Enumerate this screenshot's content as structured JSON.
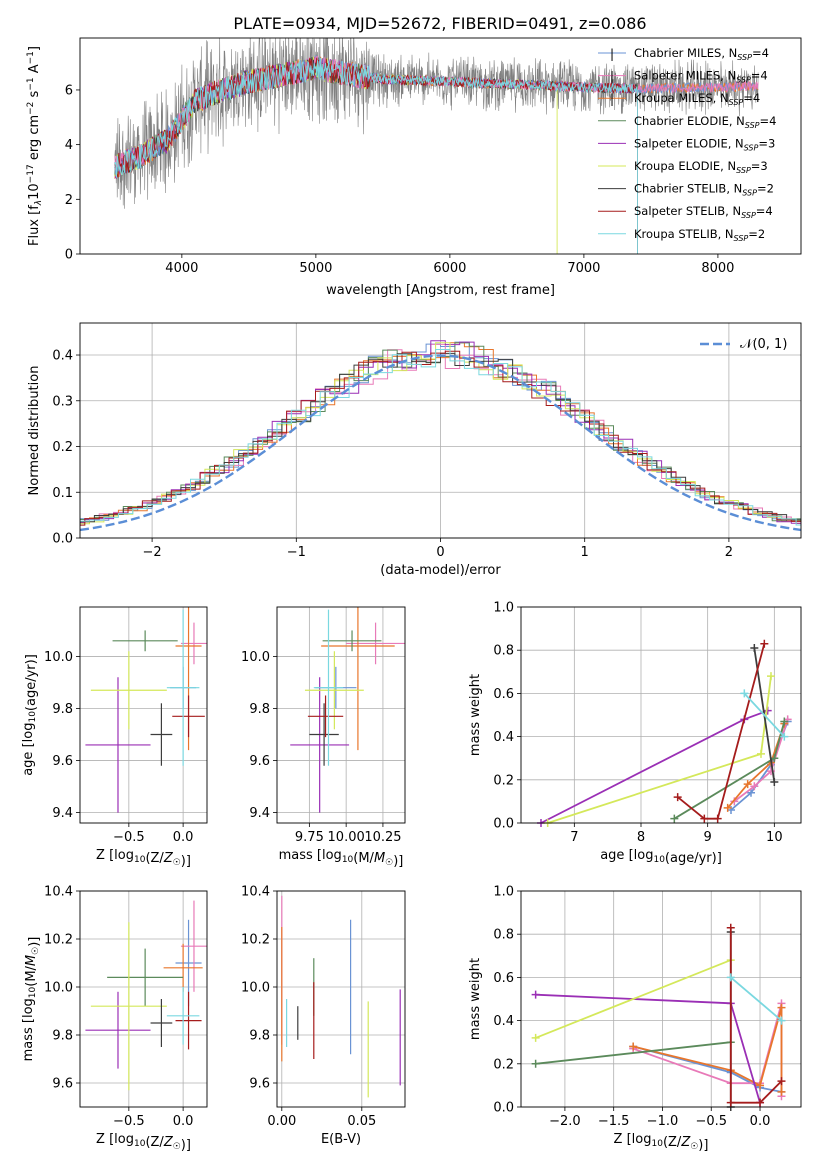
{
  "figure_title": "PLATE=0934, MJD=52672, FIBERID=0491, z=0.086",
  "colors": {
    "Chabrier MILES": "#6a93d4",
    "Salpeter MILES": "#e87ab8",
    "Kroupa MILES": "#e8762c",
    "Chabrier ELODIE": "#5b8a5b",
    "Salpeter ELODIE": "#9a2fb5",
    "Kroupa ELODIE": "#d4e85a",
    "Chabrier STELIB": "#3d3d3d",
    "Salpeter STELIB": "#a51c1c",
    "Kroupa STELIB": "#7ad8e0",
    "data": "#808080",
    "gaussian": "#5b8ed6"
  },
  "chart_data": [
    {
      "type": "line",
      "id": "spectrum",
      "title": "PLATE=0934, MJD=52672, FIBERID=0491, z=0.086",
      "xlabel": "wavelength [Angstrom, rest frame]",
      "ylabel_parts": [
        "Flux [f",
        "λ",
        "10",
        "−17",
        " erg cm",
        "−2",
        " s",
        "−1",
        " A",
        "−1",
        "]"
      ],
      "xlim": [
        3240,
        8620
      ],
      "ylim": [
        0,
        7.9
      ],
      "xticks": [
        4000,
        5000,
        6000,
        7000,
        8000
      ],
      "xtick_labels": [
        "4000",
        "5000",
        "6000",
        "7000",
        "8000"
      ],
      "yticks": [
        0,
        2,
        4,
        6
      ],
      "ytick_labels": [
        "0",
        "2",
        "4",
        "6"
      ],
      "legend_position": "right",
      "legend": [
        {
          "label": "Chabrier MILES, N",
          "sub": "SSP",
          "tail": "=4"
        },
        {
          "label": "Salpeter MILES, N",
          "sub": "SSP",
          "tail": "=4"
        },
        {
          "label": "Kroupa MILES, N",
          "sub": "SSP",
          "tail": "=4"
        },
        {
          "label": "Chabrier ELODIE, N",
          "sub": "SSP",
          "tail": "=4"
        },
        {
          "label": "Salpeter ELODIE, N",
          "sub": "SSP",
          "tail": "=3"
        },
        {
          "label": "Kroupa ELODIE, N",
          "sub": "SSP",
          "tail": "=3"
        },
        {
          "label": "Chabrier STELIB, N",
          "sub": "SSP",
          "tail": "=2"
        },
        {
          "label": "Salpeter STELIB, N",
          "sub": "SSP",
          "tail": "=4"
        },
        {
          "label": "Kroupa STELIB, N",
          "sub": "SSP",
          "tail": "=2"
        }
      ],
      "continuum": {
        "x": [
          3500,
          3700,
          3900,
          4000,
          4100,
          4300,
          4500,
          4800,
          5000,
          5200,
          5500,
          6000,
          6500,
          7000,
          7400,
          8000,
          8300
        ],
        "y": [
          3.2,
          3.6,
          4.2,
          4.9,
          5.6,
          6.0,
          6.3,
          6.6,
          6.8,
          6.6,
          6.4,
          6.3,
          6.2,
          6.1,
          6.05,
          6.1,
          6.15
        ]
      }
    },
    {
      "type": "line",
      "id": "residual-histogram",
      "xlabel": "(data-model)/error",
      "ylabel": "Normed distribution",
      "xlim": [
        -2.5,
        2.5
      ],
      "ylim": [
        0,
        0.47
      ],
      "grid": true,
      "xticks": [
        -2,
        -1,
        0,
        1,
        2
      ],
      "xtick_labels": [
        "−2",
        "−1",
        "0",
        "1",
        "2"
      ],
      "yticks": [
        0.0,
        0.1,
        0.2,
        0.3,
        0.4
      ],
      "ytick_labels": [
        "0.0",
        "0.1",
        "0.2",
        "0.3",
        "0.4"
      ],
      "legend_position": "top-right",
      "legend": [
        "𝒩(0, 1)"
      ],
      "gaussian": {
        "mean": 0,
        "sd": 1
      }
    },
    {
      "type": "scatter",
      "id": "age-vs-Z",
      "xlabel": "Z [log10(Z/Z☉)]",
      "ylabel": "age  [log10(age/yr)]",
      "xlim": [
        -0.95,
        0.22
      ],
      "ylim": [
        9.36,
        10.19
      ],
      "grid": true,
      "xticks": [
        -0.5,
        0.0
      ],
      "xtick_labels": [
        "−0.5",
        "0.0"
      ],
      "yticks": [
        9.4,
        9.6,
        9.8,
        10.0
      ],
      "ytick_labels": [
        "9.4",
        "9.6",
        "9.8",
        "10.0"
      ],
      "points": [
        {
          "model": "Chabrier MILES",
          "x": 0.0,
          "xerr": 0.12,
          "y": 9.88,
          "yerr": 0.08
        },
        {
          "model": "Salpeter MILES",
          "x": 0.1,
          "xerr": 0.12,
          "y": 10.05,
          "yerr": 0.08
        },
        {
          "model": "Kroupa MILES",
          "x": 0.05,
          "xerr": 0.12,
          "y": 10.04,
          "yerr": 0.4
        },
        {
          "model": "Chabrier ELODIE",
          "x": -0.35,
          "xerr": 0.3,
          "y": 10.06,
          "yerr": 0.04
        },
        {
          "model": "Salpeter ELODIE",
          "x": -0.6,
          "xerr": 0.3,
          "y": 9.66,
          "yerr": 0.26
        },
        {
          "model": "Kroupa ELODIE",
          "x": -0.5,
          "xerr": 0.35,
          "y": 9.87,
          "yerr": 0.15
        },
        {
          "model": "Chabrier STELIB",
          "x": -0.2,
          "xerr": 0.1,
          "y": 9.7,
          "yerr": 0.12
        },
        {
          "model": "Salpeter STELIB",
          "x": 0.05,
          "xerr": 0.15,
          "y": 9.77,
          "yerr": 0.08
        },
        {
          "model": "Kroupa STELIB",
          "x": 0.0,
          "xerr": 0.15,
          "y": 9.88,
          "yerr": 0.3
        }
      ]
    },
    {
      "type": "scatter",
      "id": "age-vs-mass",
      "xlabel": "mass [log10(M/M☉)]",
      "ylabel": "",
      "xlim": [
        9.53,
        10.4
      ],
      "ylim": [
        9.36,
        10.19
      ],
      "grid": true,
      "xticks": [
        9.75,
        10.0,
        10.25
      ],
      "xtick_labels": [
        "9.75",
        "10.00",
        "10.25"
      ],
      "yticks": [
        9.4,
        9.6,
        9.8,
        10.0
      ],
      "ytick_labels": [
        "9.4",
        "9.6",
        "9.8",
        "10.0"
      ],
      "points": [
        {
          "model": "Chabrier MILES",
          "x": 9.93,
          "xerr": 0.14,
          "y": 9.88,
          "yerr": 0.08
        },
        {
          "model": "Salpeter MILES",
          "x": 10.2,
          "xerr": 0.2,
          "y": 10.05,
          "yerr": 0.08
        },
        {
          "model": "Kroupa MILES",
          "x": 10.08,
          "xerr": 0.25,
          "y": 10.04,
          "yerr": 0.4
        },
        {
          "model": "Chabrier ELODIE",
          "x": 10.04,
          "xerr": 0.2,
          "y": 10.06,
          "yerr": 0.04
        },
        {
          "model": "Salpeter ELODIE",
          "x": 9.82,
          "xerr": 0.2,
          "y": 9.66,
          "yerr": 0.26
        },
        {
          "model": "Kroupa ELODIE",
          "x": 9.92,
          "xerr": 0.2,
          "y": 9.87,
          "yerr": 0.15
        },
        {
          "model": "Chabrier STELIB",
          "x": 9.85,
          "xerr": 0.1,
          "y": 9.7,
          "yerr": 0.12
        },
        {
          "model": "Salpeter STELIB",
          "x": 9.86,
          "xerr": 0.12,
          "y": 9.77,
          "yerr": 0.08
        },
        {
          "model": "Kroupa STELIB",
          "x": 9.88,
          "xerr": 0.1,
          "y": 9.88,
          "yerr": 0.3
        }
      ]
    },
    {
      "type": "line",
      "id": "mass-weight-vs-age",
      "xlabel": "age  [log10(age/yr)]",
      "ylabel": "mass weight",
      "xlim": [
        6.2,
        10.4
      ],
      "ylim": [
        0,
        1
      ],
      "grid": true,
      "xticks": [
        7,
        8,
        9,
        10
      ],
      "xtick_labels": [
        "7",
        "8",
        "9",
        "10"
      ],
      "yticks": [
        0.0,
        0.2,
        0.4,
        0.6,
        0.8,
        1.0
      ],
      "ytick_labels": [
        "0.0",
        "0.2",
        "0.4",
        "0.6",
        "0.8",
        "1.0"
      ],
      "series": [
        {
          "model": "Chabrier MILES",
          "x": [
            9.35,
            9.65,
            9.95,
            10.2
          ],
          "y": [
            0.06,
            0.14,
            0.27,
            0.47
          ]
        },
        {
          "model": "Salpeter MILES",
          "x": [
            9.4,
            9.7,
            9.95,
            10.2
          ],
          "y": [
            0.1,
            0.17,
            0.24,
            0.48
          ]
        },
        {
          "model": "Kroupa MILES",
          "x": [
            9.3,
            9.6,
            9.95,
            10.15
          ],
          "y": [
            0.07,
            0.18,
            0.28,
            0.46
          ]
        },
        {
          "model": "Chabrier ELODIE",
          "x": [
            8.5,
            10.0,
            10.15
          ],
          "y": [
            0.02,
            0.3,
            0.47
          ]
        },
        {
          "model": "Salpeter ELODIE",
          "x": [
            6.5,
            9.55,
            9.9
          ],
          "y": [
            0.0,
            0.48,
            0.52
          ]
        },
        {
          "model": "Kroupa ELODIE",
          "x": [
            6.6,
            9.8,
            9.95
          ],
          "y": [
            0.0,
            0.32,
            0.68
          ]
        },
        {
          "model": "Chabrier STELIB",
          "x": [
            9.7,
            10.0
          ],
          "y": [
            0.81,
            0.19
          ]
        },
        {
          "model": "Salpeter STELIB",
          "x": [
            8.55,
            8.95,
            9.15,
            9.85
          ],
          "y": [
            0.12,
            0.02,
            0.02,
            0.83
          ]
        },
        {
          "model": "Kroupa STELIB",
          "x": [
            9.55,
            10.15
          ],
          "y": [
            0.6,
            0.4
          ]
        }
      ]
    },
    {
      "type": "scatter",
      "id": "mass-vs-Z",
      "xlabel": "Z [log10(Z/Z☉)]",
      "ylabel": "mass [log10(M/M☉)]",
      "xlim": [
        -0.95,
        0.22
      ],
      "ylim": [
        9.5,
        10.4
      ],
      "grid": true,
      "xticks": [
        -0.5,
        0.0
      ],
      "xtick_labels": [
        "−0.5",
        "0.0"
      ],
      "yticks": [
        9.6,
        9.8,
        10.0,
        10.2,
        10.4
      ],
      "ytick_labels": [
        "9.6",
        "9.8",
        "10.0",
        "10.2",
        "10.4"
      ],
      "points": [
        {
          "model": "Chabrier MILES",
          "x": 0.05,
          "xerr": 0.12,
          "y": 10.1,
          "yerr": 0.18
        },
        {
          "model": "Salpeter MILES",
          "x": 0.1,
          "xerr": 0.12,
          "y": 10.17,
          "yerr": 0.19
        },
        {
          "model": "Kroupa MILES",
          "x": 0.0,
          "xerr": 0.18,
          "y": 10.08,
          "yerr": 0.1
        },
        {
          "model": "Chabrier ELODIE",
          "x": -0.35,
          "xerr": 0.35,
          "y": 10.04,
          "yerr": 0.12
        },
        {
          "model": "Salpeter ELODIE",
          "x": -0.6,
          "xerr": 0.3,
          "y": 9.82,
          "yerr": 0.16
        },
        {
          "model": "Kroupa ELODIE",
          "x": -0.5,
          "xerr": 0.35,
          "y": 9.92,
          "yerr": 0.35
        },
        {
          "model": "Chabrier STELIB",
          "x": -0.2,
          "xerr": 0.1,
          "y": 9.85,
          "yerr": 0.1
        },
        {
          "model": "Salpeter STELIB",
          "x": 0.05,
          "xerr": 0.12,
          "y": 9.86,
          "yerr": 0.12
        },
        {
          "model": "Kroupa STELIB",
          "x": 0.0,
          "xerr": 0.15,
          "y": 9.88,
          "yerr": 0.12
        }
      ]
    },
    {
      "type": "scatter",
      "id": "mass-vs-EBV",
      "xlabel": "E(B-V)",
      "ylabel": "",
      "xlim": [
        -0.003,
        0.077
      ],
      "ylim": [
        9.5,
        10.4
      ],
      "grid": true,
      "xticks": [
        0.0,
        0.05
      ],
      "xtick_labels": [
        "0.00",
        "0.05"
      ],
      "yticks": [
        9.6,
        9.8,
        10.0,
        10.2,
        10.4
      ],
      "ytick_labels": [
        "9.6",
        "9.8",
        "10.0",
        "10.2",
        "10.4"
      ],
      "points": [
        {
          "model": "Chabrier MILES",
          "x": 0.043,
          "xerr": 0,
          "y": 10.0,
          "yerr": 0.28
        },
        {
          "model": "Salpeter MILES",
          "x": 0.0,
          "xerr": 0,
          "y": 10.07,
          "yerr": 0.31
        },
        {
          "model": "Kroupa MILES",
          "x": 0.0,
          "xerr": 0,
          "y": 9.97,
          "yerr": 0.28
        },
        {
          "model": "Chabrier ELODIE",
          "x": 0.02,
          "xerr": 0,
          "y": 10.0,
          "yerr": 0.12
        },
        {
          "model": "Salpeter ELODIE",
          "x": 0.074,
          "xerr": 0,
          "y": 9.79,
          "yerr": 0.2
        },
        {
          "model": "Kroupa ELODIE",
          "x": 0.054,
          "xerr": 0,
          "y": 9.74,
          "yerr": 0.2
        },
        {
          "model": "Chabrier STELIB",
          "x": 0.01,
          "xerr": 0,
          "y": 9.85,
          "yerr": 0.07
        },
        {
          "model": "Salpeter STELIB",
          "x": 0.02,
          "xerr": 0,
          "y": 9.86,
          "yerr": 0.16
        },
        {
          "model": "Kroupa STELIB",
          "x": 0.003,
          "xerr": 0,
          "y": 9.85,
          "yerr": 0.1
        }
      ]
    },
    {
      "type": "line",
      "id": "mass-weight-vs-Z",
      "xlabel": "Z [log10(Z/Z☉)]",
      "ylabel": "mass weight",
      "xlim": [
        -2.45,
        0.42
      ],
      "ylim": [
        0,
        1
      ],
      "grid": true,
      "xticks": [
        -2.0,
        -1.5,
        -1.0,
        -0.5,
        0.0
      ],
      "xtick_labels": [
        "−2.0",
        "−1.5",
        "−1.0",
        "−0.5",
        "0.0"
      ],
      "yticks": [
        0.0,
        0.2,
        0.4,
        0.6,
        0.8,
        1.0
      ],
      "ytick_labels": [
        "0.0",
        "0.2",
        "0.4",
        "0.6",
        "0.8",
        "1.0"
      ],
      "series": [
        {
          "model": "Chabrier MILES",
          "x": [
            -1.3,
            -0.3,
            0.0,
            0.22
          ],
          "y": [
            0.28,
            0.16,
            0.09,
            0.07
          ]
        },
        {
          "model": "Salpeter MILES",
          "x": [
            -1.3,
            -0.3,
            0.0,
            0.22,
            0.22
          ],
          "y": [
            0.27,
            0.11,
            0.11,
            0.48,
            0.05
          ]
        },
        {
          "model": "Kroupa MILES",
          "x": [
            -1.3,
            -0.3,
            0.0,
            0.22,
            0.22
          ],
          "y": [
            0.28,
            0.17,
            0.1,
            0.46,
            0.07
          ]
        },
        {
          "model": "Chabrier ELODIE",
          "x": [
            -2.3,
            -0.3
          ],
          "y": [
            0.2,
            0.3
          ]
        },
        {
          "model": "Salpeter ELODIE",
          "x": [
            -2.3,
            -0.3,
            0.0
          ],
          "y": [
            0.52,
            0.48,
            0.02
          ]
        },
        {
          "model": "Kroupa ELODIE",
          "x": [
            -2.3,
            -0.3
          ],
          "y": [
            0.32,
            0.68
          ]
        },
        {
          "model": "Chabrier STELIB",
          "x": [
            -0.3,
            -0.3
          ],
          "y": [
            0.81,
            0.0
          ]
        },
        {
          "model": "Salpeter STELIB",
          "x": [
            -0.3,
            -0.3,
            0.0,
            0.22
          ],
          "y": [
            0.83,
            0.02,
            0.02,
            0.12
          ]
        },
        {
          "model": "Kroupa STELIB",
          "x": [
            -0.3,
            0.22
          ],
          "y": [
            0.6,
            0.4
          ]
        }
      ]
    }
  ]
}
